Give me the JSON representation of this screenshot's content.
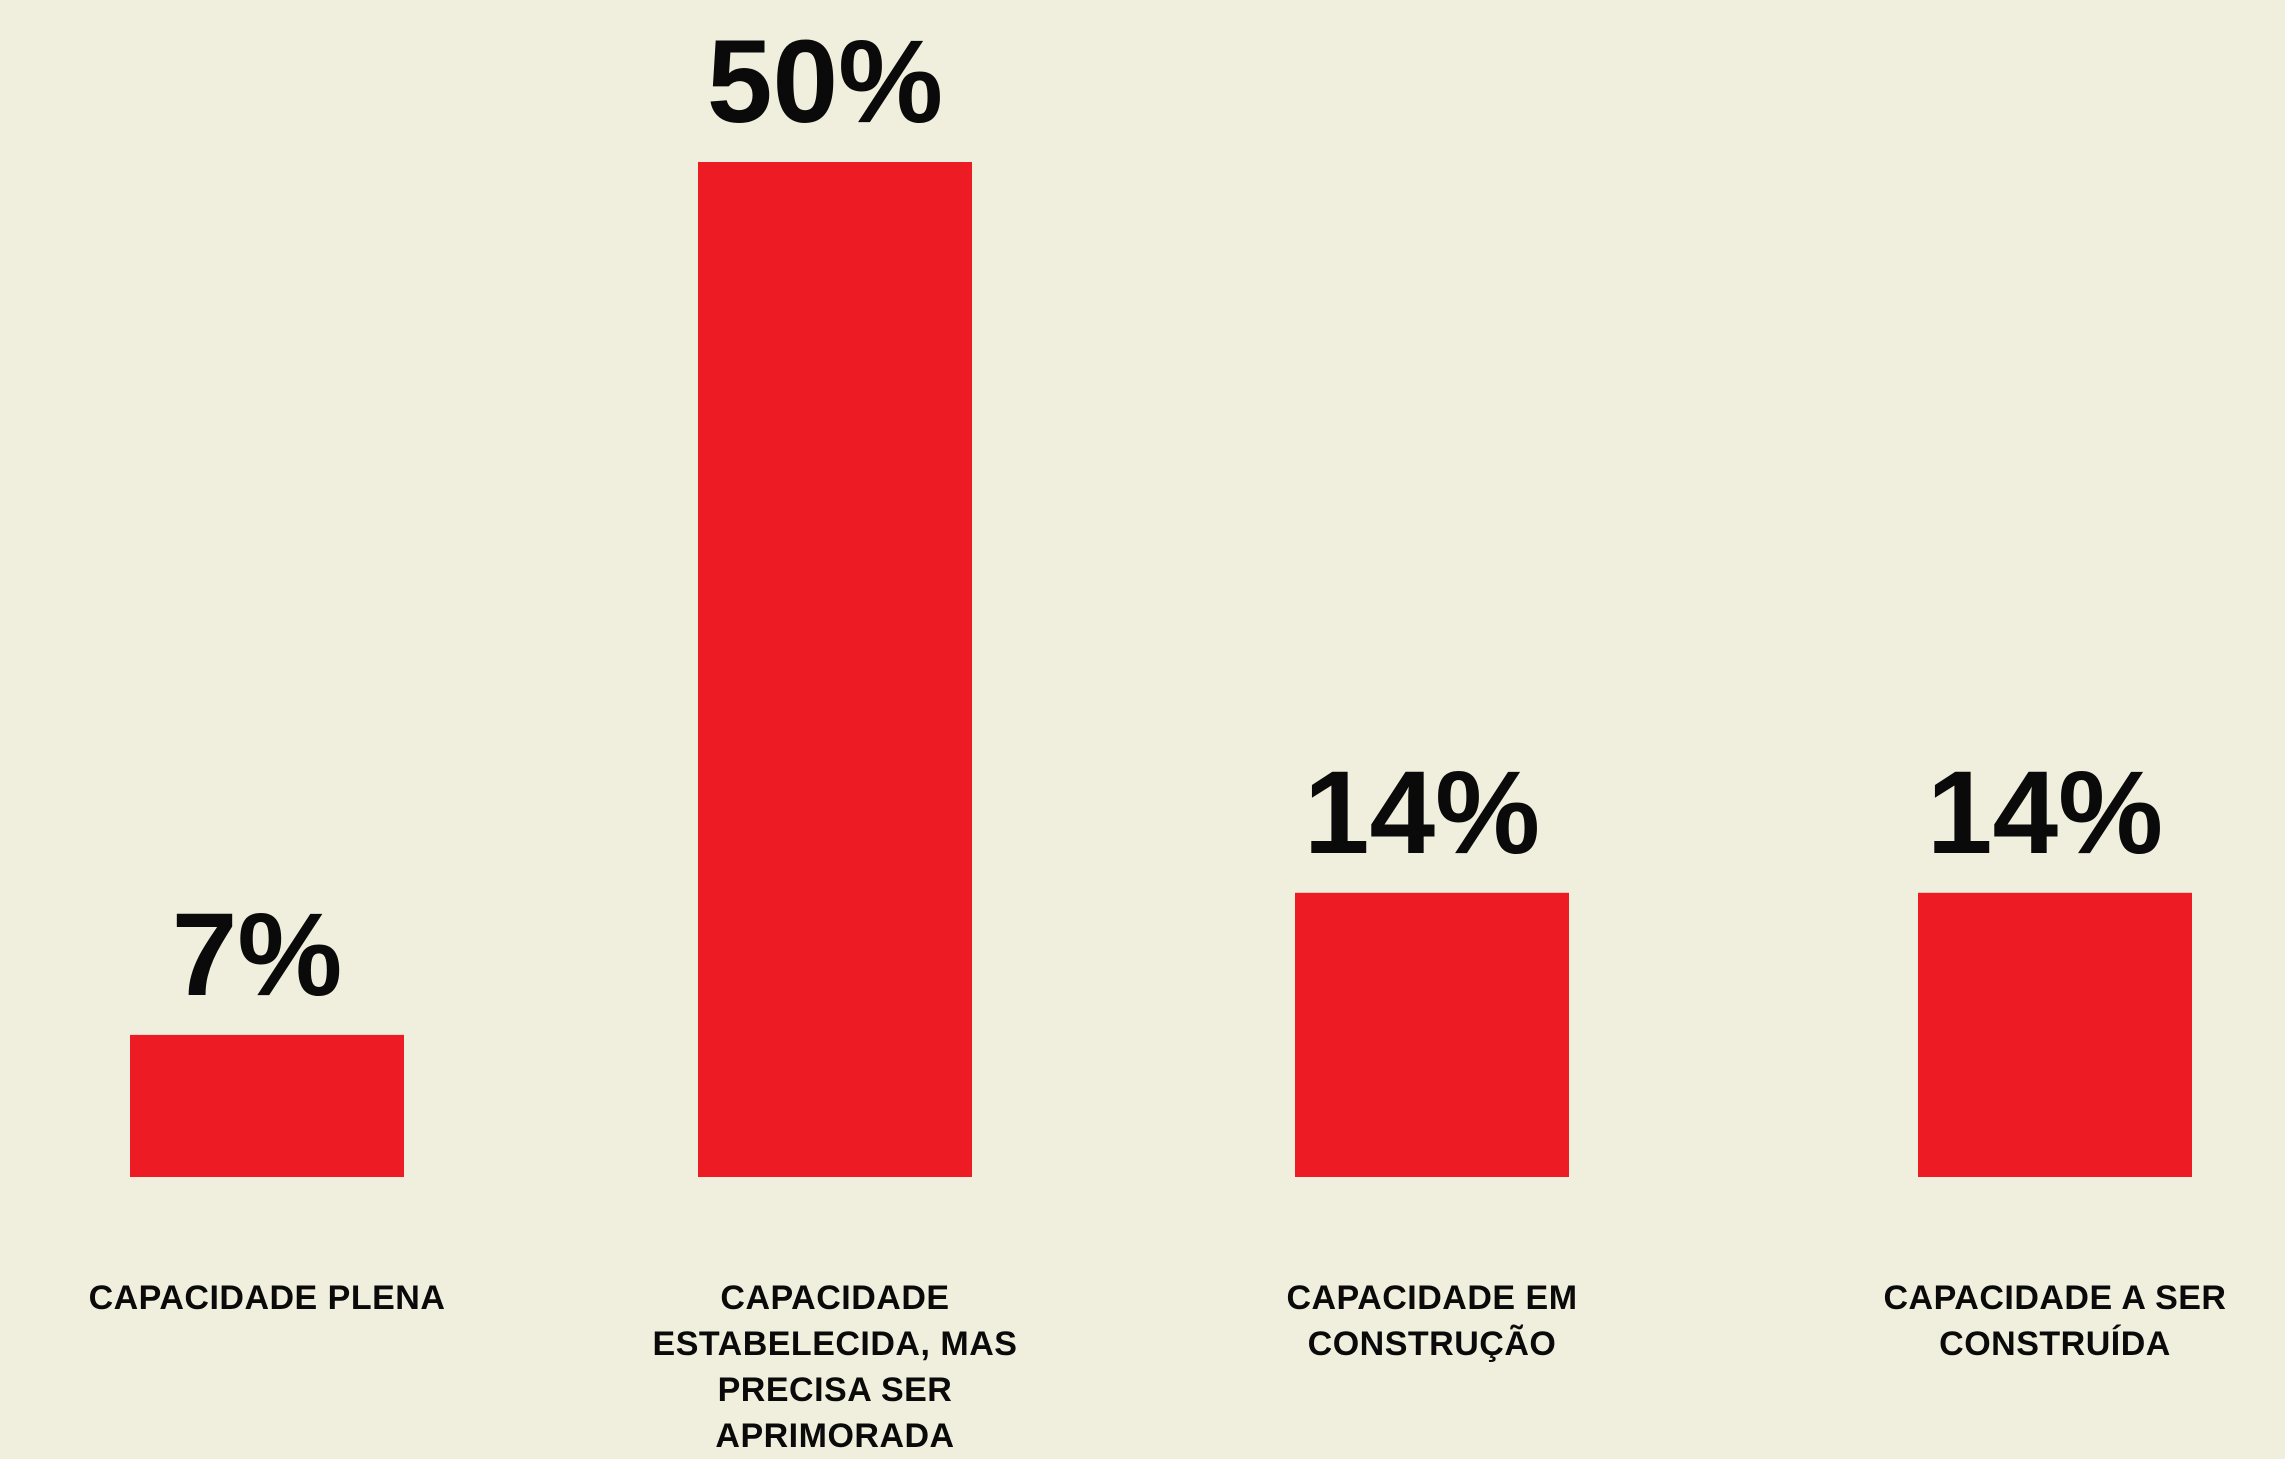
{
  "chart_data": {
    "type": "bar",
    "categories": [
      "CAPACIDADE PLENA",
      "CAPACIDADE ESTABELECIDA, MAS PRECISA SER APRIMORADA",
      "CAPACIDADE EM CONSTRUÇÃO",
      "CAPACIDADE A SER CONSTRUÍDA"
    ],
    "values": [
      7,
      50,
      14,
      14
    ],
    "value_labels": [
      "7%",
      "50%",
      "14%",
      "14%"
    ],
    "color": "#ed1c24"
  }
}
